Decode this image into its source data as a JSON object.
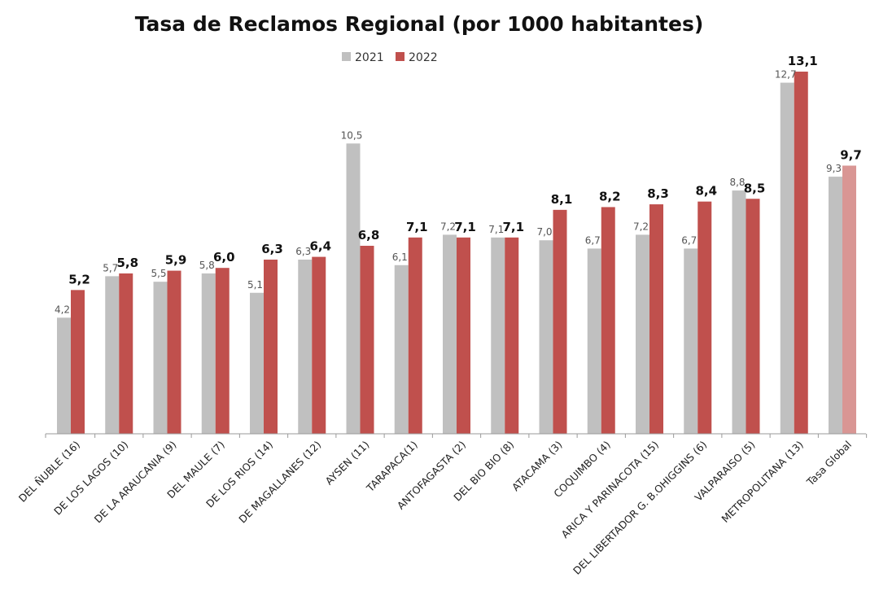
{
  "chart_data": {
    "type": "bar",
    "title": "Tasa de Reclamos Regional (por 1000 habitantes)",
    "categories": [
      "DEL ÑUBLE (16)",
      "DE LOS LAGOS (10)",
      "DE LA ARAUCANIA (9)",
      "DEL MAULE (7)",
      "DE LOS RIOS (14)",
      "DE MAGALLANES  (12)",
      "AYSEN  (11)",
      "TARAPACA(1)",
      "ANTOFAGASTA (2)",
      "DEL BIO BIO (8)",
      "ATACAMA (3)",
      "COQUIMBO (4)",
      "ARICA Y PARINACOTA (15)",
      "DEL LIBERTADOR G. B.OHIGGINS (6)",
      "VALPARAISO (5)",
      "METROPOLITANA  (13)",
      "Tasa Global"
    ],
    "series": [
      {
        "name": "2021",
        "color": "#c0c0c0",
        "highlight_color": "#c0c0c0",
        "values": [
          4.2,
          5.7,
          5.5,
          5.8,
          5.1,
          6.3,
          10.5,
          6.1,
          7.2,
          7.1,
          7.0,
          6.7,
          7.2,
          6.7,
          8.8,
          12.7,
          9.3
        ],
        "labels": [
          "4,2",
          "5,7",
          "5,5",
          "5,8",
          "5,1",
          "6,3",
          "10,5",
          "6,1",
          "7,2",
          "7,1",
          "7,0",
          "6,7",
          "7,2",
          "6,7",
          "8,8",
          "12,7",
          "9,3"
        ]
      },
      {
        "name": "2022",
        "color": "#c0504d",
        "highlight_color": "#d99694",
        "values": [
          5.2,
          5.8,
          5.9,
          6.0,
          6.3,
          6.4,
          6.8,
          7.1,
          7.1,
          7.1,
          8.1,
          8.2,
          8.3,
          8.4,
          8.5,
          13.1,
          9.7
        ],
        "labels": [
          "5,2",
          "5,8",
          "5,9",
          "6,0",
          "6,3",
          "6,4",
          "6,8",
          "7,1",
          "7,1",
          "7,1",
          "8,1",
          "8,2",
          "8,3",
          "8,4",
          "8,5",
          "13,1",
          "9,7"
        ]
      }
    ],
    "ylim": [
      0,
      13.1
    ],
    "legend_position": "top-center",
    "grid": false
  }
}
